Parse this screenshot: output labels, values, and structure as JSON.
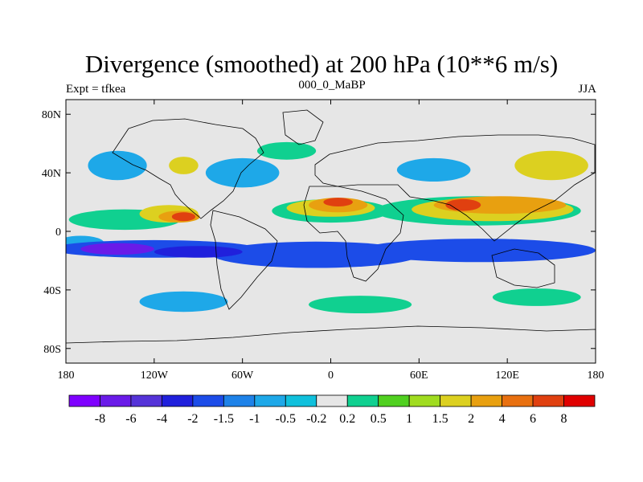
{
  "title": "Divergence (smoothed) at 200 hPa (10**6 m/s)",
  "left_string": "Expt = tfkea",
  "center_string": "000_0_MaBP",
  "right_string": "JJA",
  "lat_labels": [
    {
      "text": "80N",
      "lat": 80
    },
    {
      "text": "40N",
      "lat": 40
    },
    {
      "text": "0",
      "lat": 0
    },
    {
      "text": "40S",
      "lat": -40
    },
    {
      "text": "80S",
      "lat": -80
    }
  ],
  "lon_labels": [
    {
      "text": "180",
      "lon": -180
    },
    {
      "text": "120W",
      "lon": -120
    },
    {
      "text": "60W",
      "lon": -60
    },
    {
      "text": "0",
      "lon": 0
    },
    {
      "text": "60E",
      "lon": 60
    },
    {
      "text": "120E",
      "lon": 120
    },
    {
      "text": "180",
      "lon": 180
    }
  ],
  "colorbar": {
    "colors": [
      "#7F00FF",
      "#6A1BE8",
      "#5533D8",
      "#2020DC",
      "#1C4CE8",
      "#1E82E8",
      "#1EA8E8",
      "#10C0DC",
      "#E6E6E6",
      "#10D090",
      "#50D020",
      "#A0DC20",
      "#DCD020",
      "#E8A010",
      "#E87010",
      "#E04010",
      "#E00000"
    ],
    "labels": [
      "-8",
      "-6",
      "-4",
      "-2",
      "-1.5",
      "-1",
      "-0.5",
      "-0.2",
      "0.2",
      "0.5",
      "1",
      "1.5",
      "2",
      "4",
      "6",
      "8"
    ]
  },
  "blobs": [
    {
      "cls": "green",
      "lon": -140,
      "lat": 8,
      "rx": 38,
      "ry": 7
    },
    {
      "cls": "yellow",
      "lon": -110,
      "lat": 12,
      "rx": 20,
      "ry": 6
    },
    {
      "cls": "orange",
      "lon": -103,
      "lat": 10,
      "rx": 14,
      "ry": 4
    },
    {
      "cls": "red",
      "lon": -100,
      "lat": 10,
      "rx": 8,
      "ry": 3
    },
    {
      "cls": "lblue",
      "lon": -170,
      "lat": -8,
      "rx": 16,
      "ry": 5
    },
    {
      "cls": "blue",
      "lon": -120,
      "lat": -12,
      "rx": 70,
      "ry": 6
    },
    {
      "cls": "blue",
      "lon": -10,
      "lat": -16,
      "rx": 70,
      "ry": 9
    },
    {
      "cls": "blue",
      "lon": 100,
      "lat": -13,
      "rx": 80,
      "ry": 8
    },
    {
      "cls": "purple",
      "lon": -145,
      "lat": -12,
      "rx": 25,
      "ry": 4
    },
    {
      "cls": "dblue",
      "lon": -90,
      "lat": -14,
      "rx": 30,
      "ry": 4
    },
    {
      "cls": "green",
      "lon": 0,
      "lat": 14,
      "rx": 40,
      "ry": 8
    },
    {
      "cls": "yellow",
      "lon": 0,
      "lat": 16,
      "rx": 30,
      "ry": 6
    },
    {
      "cls": "orange",
      "lon": 5,
      "lat": 18,
      "rx": 20,
      "ry": 5
    },
    {
      "cls": "red",
      "lon": 5,
      "lat": 20,
      "rx": 10,
      "ry": 3
    },
    {
      "cls": "green",
      "lon": 100,
      "lat": 14,
      "rx": 70,
      "ry": 10
    },
    {
      "cls": "yellow",
      "lon": 110,
      "lat": 15,
      "rx": 55,
      "ry": 8
    },
    {
      "cls": "orange",
      "lon": 115,
      "lat": 18,
      "rx": 45,
      "ry": 6
    },
    {
      "cls": "red",
      "lon": 90,
      "lat": 18,
      "rx": 12,
      "ry": 4
    },
    {
      "cls": "lblue",
      "lon": -60,
      "lat": 40,
      "rx": 25,
      "ry": 10
    },
    {
      "cls": "lblue",
      "lon": -145,
      "lat": 45,
      "rx": 20,
      "ry": 10
    },
    {
      "cls": "yellow",
      "lon": -100,
      "lat": 45,
      "rx": 10,
      "ry": 6
    },
    {
      "cls": "green",
      "lon": -30,
      "lat": 55,
      "rx": 20,
      "ry": 6
    },
    {
      "cls": "lblue",
      "lon": 70,
      "lat": 42,
      "rx": 25,
      "ry": 8
    },
    {
      "cls": "yellow",
      "lon": 150,
      "lat": 45,
      "rx": 25,
      "ry": 10
    },
    {
      "cls": "lblue",
      "lon": -100,
      "lat": -48,
      "rx": 30,
      "ry": 7
    },
    {
      "cls": "green",
      "lon": 20,
      "lat": -50,
      "rx": 35,
      "ry": 6
    },
    {
      "cls": "green",
      "lon": 140,
      "lat": -45,
      "rx": 30,
      "ry": 6
    }
  ]
}
